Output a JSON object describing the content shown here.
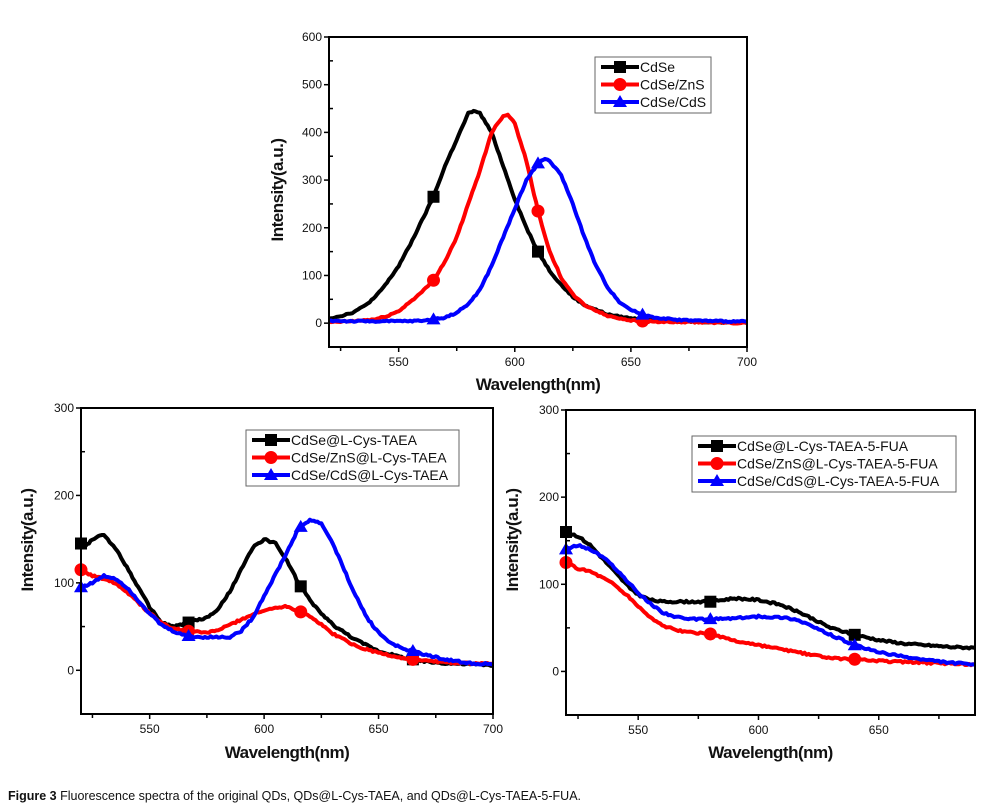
{
  "caption": {
    "label": "Figure 3",
    "text": "Fluorescence spectra of the original QDs, QDs@L-Cys-TAEA, and QDs@L-Cys-TAEA-5-FUA."
  },
  "chart_data": [
    {
      "id": "original",
      "type": "line",
      "title": "",
      "xlabel": "Wavelength(nm)",
      "ylabel": "Intensity(a.u.)",
      "xlim": [
        520,
        700
      ],
      "ylim": [
        -50,
        600
      ],
      "xticks": [
        550,
        600,
        650,
        700
      ],
      "yticks": [
        0,
        100,
        200,
        300,
        400,
        500,
        600
      ],
      "grid": false,
      "legend_position": "top-right",
      "series": [
        {
          "name": "CdSe",
          "color": "#000000",
          "marker": "square",
          "x": [
            520,
            525,
            530,
            535,
            540,
            545,
            550,
            555,
            560,
            565,
            570,
            575,
            580,
            583,
            585,
            590,
            595,
            600,
            605,
            610,
            615,
            620,
            625,
            630,
            640,
            650,
            660,
            670,
            680,
            690,
            700
          ],
          "y": [
            10,
            15,
            22,
            35,
            55,
            85,
            120,
            165,
            215,
            265,
            330,
            385,
            440,
            445,
            440,
            400,
            330,
            260,
            200,
            150,
            110,
            80,
            55,
            38,
            18,
            10,
            6,
            4,
            3,
            2,
            2
          ],
          "markers_x": [
            565,
            610
          ]
        },
        {
          "name": "CdSe/ZnS",
          "color": "#ff0000",
          "marker": "circle",
          "x": [
            520,
            530,
            540,
            545,
            550,
            555,
            560,
            565,
            570,
            575,
            580,
            585,
            590,
            595,
            597,
            600,
            605,
            610,
            615,
            620,
            625,
            630,
            640,
            650,
            660,
            670,
            680,
            690,
            700
          ],
          "y": [
            2,
            4,
            8,
            15,
            25,
            45,
            65,
            90,
            130,
            180,
            250,
            320,
            400,
            435,
            437,
            420,
            340,
            235,
            150,
            95,
            60,
            38,
            15,
            6,
            3,
            2,
            2,
            1,
            0
          ],
          "markers_x": [
            565,
            610,
            655
          ]
        },
        {
          "name": "CdSe/CdS",
          "color": "#0000ff",
          "marker": "triangle",
          "x": [
            520,
            530,
            540,
            550,
            560,
            565,
            570,
            575,
            580,
            585,
            590,
            595,
            600,
            605,
            610,
            613,
            615,
            620,
            625,
            630,
            635,
            640,
            645,
            650,
            655,
            660,
            670,
            680,
            690,
            700
          ],
          "y": [
            5,
            4,
            4,
            4,
            5,
            8,
            12,
            22,
            40,
            70,
            120,
            180,
            240,
            300,
            335,
            345,
            340,
            310,
            250,
            180,
            120,
            75,
            45,
            28,
            18,
            12,
            7,
            5,
            4,
            3
          ],
          "markers_x": [
            565,
            610,
            655
          ]
        }
      ]
    },
    {
      "id": "taea",
      "type": "line",
      "title": "",
      "xlabel": "Wavelength(nm)",
      "ylabel": "Intensity(a.u.)",
      "xlim": [
        520,
        700
      ],
      "ylim": [
        -50,
        300
      ],
      "xticks": [
        550,
        600,
        650,
        700
      ],
      "yticks": [
        0,
        100,
        200,
        300
      ],
      "grid": false,
      "legend_position": "top-right",
      "series": [
        {
          "name": "CdSe@L-Cys-TAEA",
          "color": "#000000",
          "marker": "square",
          "x": [
            520,
            522,
            525,
            530,
            535,
            540,
            545,
            550,
            555,
            560,
            565,
            570,
            575,
            580,
            585,
            590,
            595,
            600,
            605,
            610,
            615,
            620,
            625,
            630,
            640,
            650,
            660,
            670,
            680,
            690,
            700
          ],
          "y": [
            145,
            142,
            150,
            155,
            140,
            118,
            95,
            72,
            55,
            50,
            53,
            57,
            60,
            70,
            90,
            115,
            140,
            150,
            145,
            125,
            100,
            80,
            65,
            52,
            35,
            22,
            15,
            10,
            8,
            7,
            6
          ],
          "markers_x": [
            520,
            567,
            616,
            665
          ]
        },
        {
          "name": "CdSe/ZnS@L-Cys-TAEA",
          "color": "#ff0000",
          "marker": "circle",
          "x": [
            520,
            525,
            530,
            535,
            540,
            545,
            550,
            555,
            560,
            565,
            570,
            575,
            580,
            585,
            590,
            595,
            600,
            605,
            610,
            615,
            620,
            625,
            630,
            640,
            650,
            660,
            670,
            680,
            690,
            700
          ],
          "y": [
            115,
            108,
            105,
            100,
            90,
            78,
            65,
            55,
            48,
            45,
            44,
            43,
            46,
            52,
            58,
            64,
            68,
            72,
            73,
            68,
            62,
            52,
            42,
            28,
            20,
            14,
            11,
            9,
            8,
            7
          ],
          "markers_x": [
            520,
            567,
            616,
            665
          ]
        },
        {
          "name": "CdSe/CdS@L-Cys-TAEA",
          "color": "#0000ff",
          "marker": "triangle",
          "x": [
            520,
            525,
            530,
            535,
            540,
            545,
            550,
            555,
            560,
            565,
            570,
            575,
            580,
            585,
            590,
            595,
            600,
            605,
            610,
            615,
            620,
            625,
            630,
            635,
            640,
            645,
            650,
            655,
            660,
            665,
            670,
            680,
            690,
            700
          ],
          "y": [
            95,
            100,
            108,
            105,
            95,
            80,
            65,
            52,
            45,
            40,
            38,
            38,
            38,
            38,
            45,
            60,
            85,
            110,
            135,
            162,
            172,
            168,
            145,
            115,
            85,
            60,
            43,
            32,
            25,
            22,
            18,
            12,
            8,
            7
          ],
          "markers_x": [
            520,
            567,
            616,
            665
          ]
        }
      ]
    },
    {
      "id": "taea-5fua",
      "type": "line",
      "title": "",
      "xlabel": "Wavelength(nm)",
      "ylabel": "Intensity(a.u.)",
      "xlim": [
        520,
        690
      ],
      "ylim": [
        -50,
        300
      ],
      "xticks": [
        550,
        600,
        650
      ],
      "yticks": [
        0,
        100,
        200,
        300
      ],
      "grid": false,
      "legend_position": "top-right",
      "series": [
        {
          "name": "CdSe@L-Cys-TAEA-5-FUA",
          "color": "#000000",
          "marker": "square",
          "x": [
            520,
            525,
            530,
            535,
            540,
            545,
            550,
            555,
            560,
            570,
            580,
            590,
            600,
            610,
            615,
            620,
            625,
            630,
            640,
            650,
            660,
            670,
            680,
            690
          ],
          "y": [
            160,
            155,
            145,
            130,
            115,
            100,
            88,
            82,
            80,
            80,
            80,
            84,
            82,
            76,
            70,
            64,
            57,
            50,
            42,
            36,
            32,
            30,
            28,
            27
          ],
          "markers_x": [
            520,
            580,
            640
          ]
        },
        {
          "name": "CdSe/ZnS@L-Cys-TAEA-5-FUA",
          "color": "#ff0000",
          "marker": "circle",
          "x": [
            520,
            525,
            530,
            535,
            540,
            545,
            550,
            555,
            560,
            565,
            570,
            580,
            590,
            600,
            610,
            620,
            630,
            640,
            650,
            660,
            670,
            680,
            690
          ],
          "y": [
            125,
            118,
            115,
            108,
            100,
            88,
            75,
            62,
            53,
            48,
            45,
            43,
            35,
            30,
            25,
            20,
            15,
            14,
            12,
            11,
            10,
            9,
            8
          ],
          "markers_x": [
            520,
            580,
            640
          ]
        },
        {
          "name": "CdSe/CdS@L-Cys-TAEA-5-FUA",
          "color": "#0000ff",
          "marker": "triangle",
          "x": [
            520,
            525,
            530,
            535,
            540,
            545,
            550,
            555,
            560,
            565,
            570,
            580,
            590,
            600,
            610,
            615,
            620,
            625,
            630,
            640,
            650,
            660,
            670,
            680,
            690
          ],
          "y": [
            140,
            145,
            140,
            132,
            120,
            105,
            90,
            78,
            68,
            63,
            60,
            60,
            61,
            63,
            62,
            60,
            55,
            48,
            42,
            30,
            22,
            17,
            13,
            10,
            8
          ],
          "markers_x": [
            520,
            580,
            640
          ]
        }
      ]
    }
  ]
}
